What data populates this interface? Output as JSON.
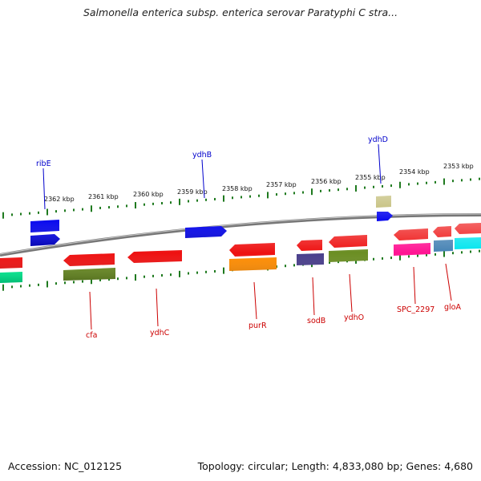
{
  "title": "Salmonella enterica subsp. enterica serovar Paratyphi C stra...",
  "footer": {
    "accession": "Accession: NC_012125",
    "topology": "Topology: circular; Length: 4,833,080 bp; Genes: 4,680"
  },
  "scale": {
    "ticks": [
      "2362 kbp",
      "2361 kbp",
      "2360 kbp",
      "2359 kbp",
      "2358 kbp",
      "2357 kbp",
      "2356 kbp",
      "2355 kbp",
      "2354 kbp",
      "2353 kbp"
    ]
  },
  "genes_outer": [
    {
      "name": "ribE",
      "color": "#0a0aee"
    },
    {
      "name": "ydhB",
      "color": "#0a0aee"
    },
    {
      "name": "ydhD",
      "color": "#0a0aee"
    }
  ],
  "genes_inner": [
    {
      "name": "cfa",
      "color": "#ee1111"
    },
    {
      "name": "ydhC",
      "color": "#ee1111"
    },
    {
      "name": "purR",
      "color": "#ee1111"
    },
    {
      "name": "sodB",
      "color": "#ee1111"
    },
    {
      "name": "ydhO",
      "color": "#ee1111"
    },
    {
      "name": "SPC_2297",
      "color": "#ee1111"
    },
    {
      "name": "gloA",
      "color": "#ee1111"
    }
  ],
  "colors": {
    "forward_cds": "#0a0aee",
    "reverse_cds": "#ee1111",
    "ticks": "#1f7a1f",
    "backbone": "#888888",
    "olive": "#6b8e23",
    "orange": "#ff8c00",
    "slate": "#483d8b",
    "khaki": "#bdb76b",
    "magenta": "#ff1493",
    "steel": "#4682b4",
    "cyan": "#00e5ee",
    "teal": "#00fa9a"
  }
}
